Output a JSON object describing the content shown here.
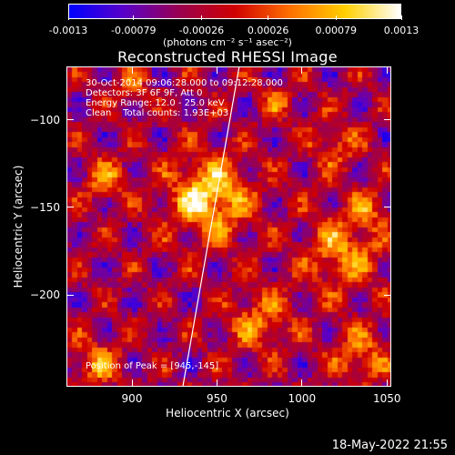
{
  "chart_data": {
    "type": "heatmap",
    "title": "Reconstructed RHESSI Image",
    "xlabel": "Heliocentric X (arcsec)",
    "ylabel": "Heliocentric Y (arcsec)",
    "xlim": [
      862,
      1052
    ],
    "ylim": [
      -252,
      -70
    ],
    "x_ticks": [
      "900",
      "950",
      "1000",
      "1050"
    ],
    "x_tick_values": [
      900,
      950,
      1000,
      1050
    ],
    "y_ticks": [
      "-100",
      "-150",
      "-200"
    ],
    "y_tick_values": [
      -100,
      -150,
      -200
    ],
    "colorbar": {
      "ticks": [
        "-0.0013",
        "-0.00079",
        "-0.00026",
        "0.00026",
        "0.00079",
        "0.0013"
      ],
      "tick_values": [
        -0.0013,
        -0.00079,
        -0.00026,
        0.00026,
        0.00079,
        0.0013
      ],
      "unit_label": "(photons cm⁻² s⁻¹ asec⁻²)",
      "colors": [
        "#0000ff",
        "#5a00c8",
        "#9a0050",
        "#d00000",
        "#ff7000",
        "#ffd000",
        "#ffffff"
      ]
    },
    "info_lines": [
      "30-Oct-2014 09:06:28.000 to 09:12:28.000",
      "Detectors: 3F 6F 9F, Att 0",
      "Energy Range: 12.0 - 25.0 keV",
      "Clean    Total counts: 1.93E+03"
    ],
    "peak_label": "Position of Peak = [945,-145]",
    "peak_position": [
      945,
      -145
    ],
    "limb_line": [
      [
        930,
        -252
      ],
      [
        963,
        -70
      ]
    ],
    "grid": false
  },
  "footer_timestamp": "18-May-2022 21:55"
}
